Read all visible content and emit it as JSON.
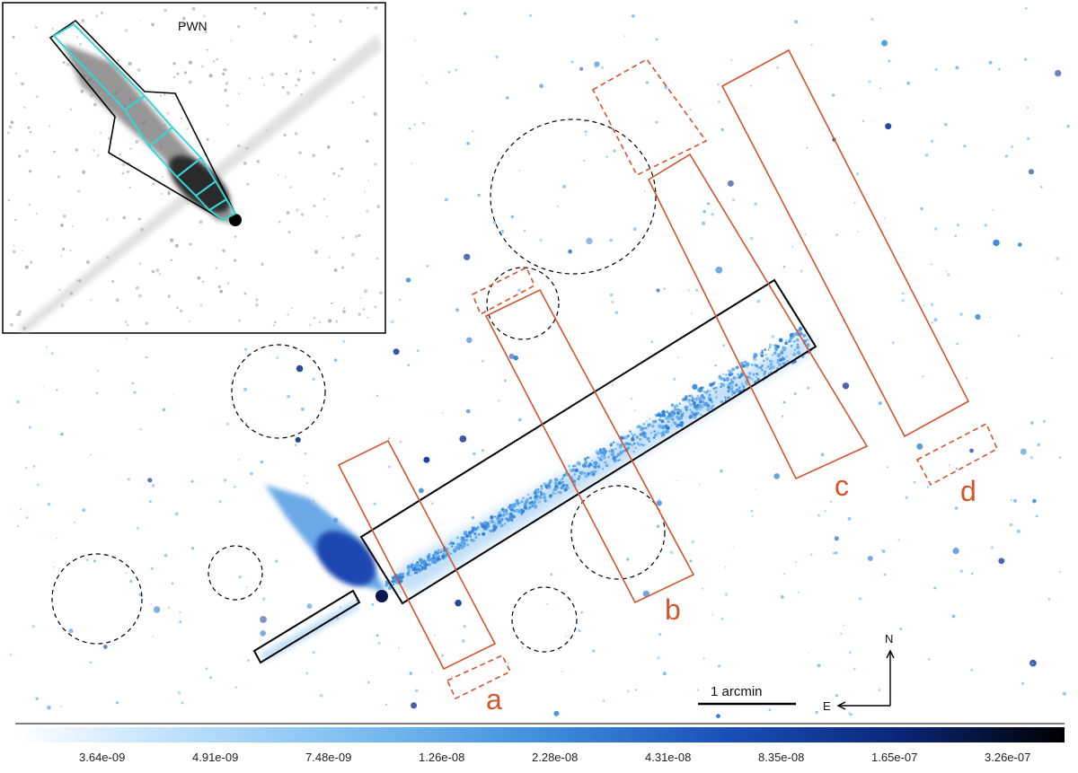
{
  "figure": {
    "inset_title": "PWN",
    "scale_bar_label": "1 arcmin",
    "compass": {
      "north": "N",
      "east": "E"
    },
    "region_labels": [
      "a",
      "b",
      "c",
      "d"
    ],
    "colorbar": {
      "ticks": [
        "3.64e-09",
        "4.91e-09",
        "7.48e-09",
        "1.26e-08",
        "2.28e-08",
        "4.31e-08",
        "8.35e-08",
        "1.65e-07",
        "3.26e-07"
      ],
      "colors": [
        "#ffffff",
        "#bfe0fb",
        "#7fbff0",
        "#3f8fdc",
        "#1a4fb8",
        "#0a2474",
        "#000000"
      ]
    },
    "colors": {
      "emission": "#3a8de0",
      "emission_dense": "#1a4fb8",
      "region_outline": "#d4542c",
      "tail_box": "#000000",
      "inset_boxes": "#36d6d6"
    }
  }
}
